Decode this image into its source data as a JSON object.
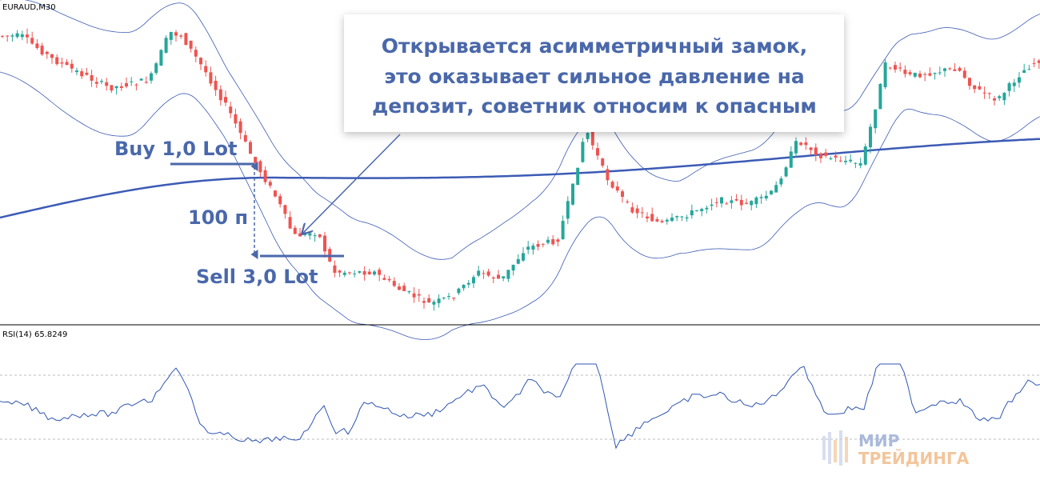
{
  "chart_label": "EURAUD,M30",
  "indicator_label": "RSI(14) 65.8249",
  "callout": {
    "lines": [
      "Открывается асимметричный замок,",
      "это оказывает сильное давление на",
      "депозит, советник относим к опасным"
    ]
  },
  "annotations": {
    "buy": "Buy 1,0 Lot",
    "distance": "100 п",
    "sell": "Sell 3,0 Lot"
  },
  "logo": {
    "top": "МИР",
    "bottom": "ТРЕЙДИНГА"
  }
}
